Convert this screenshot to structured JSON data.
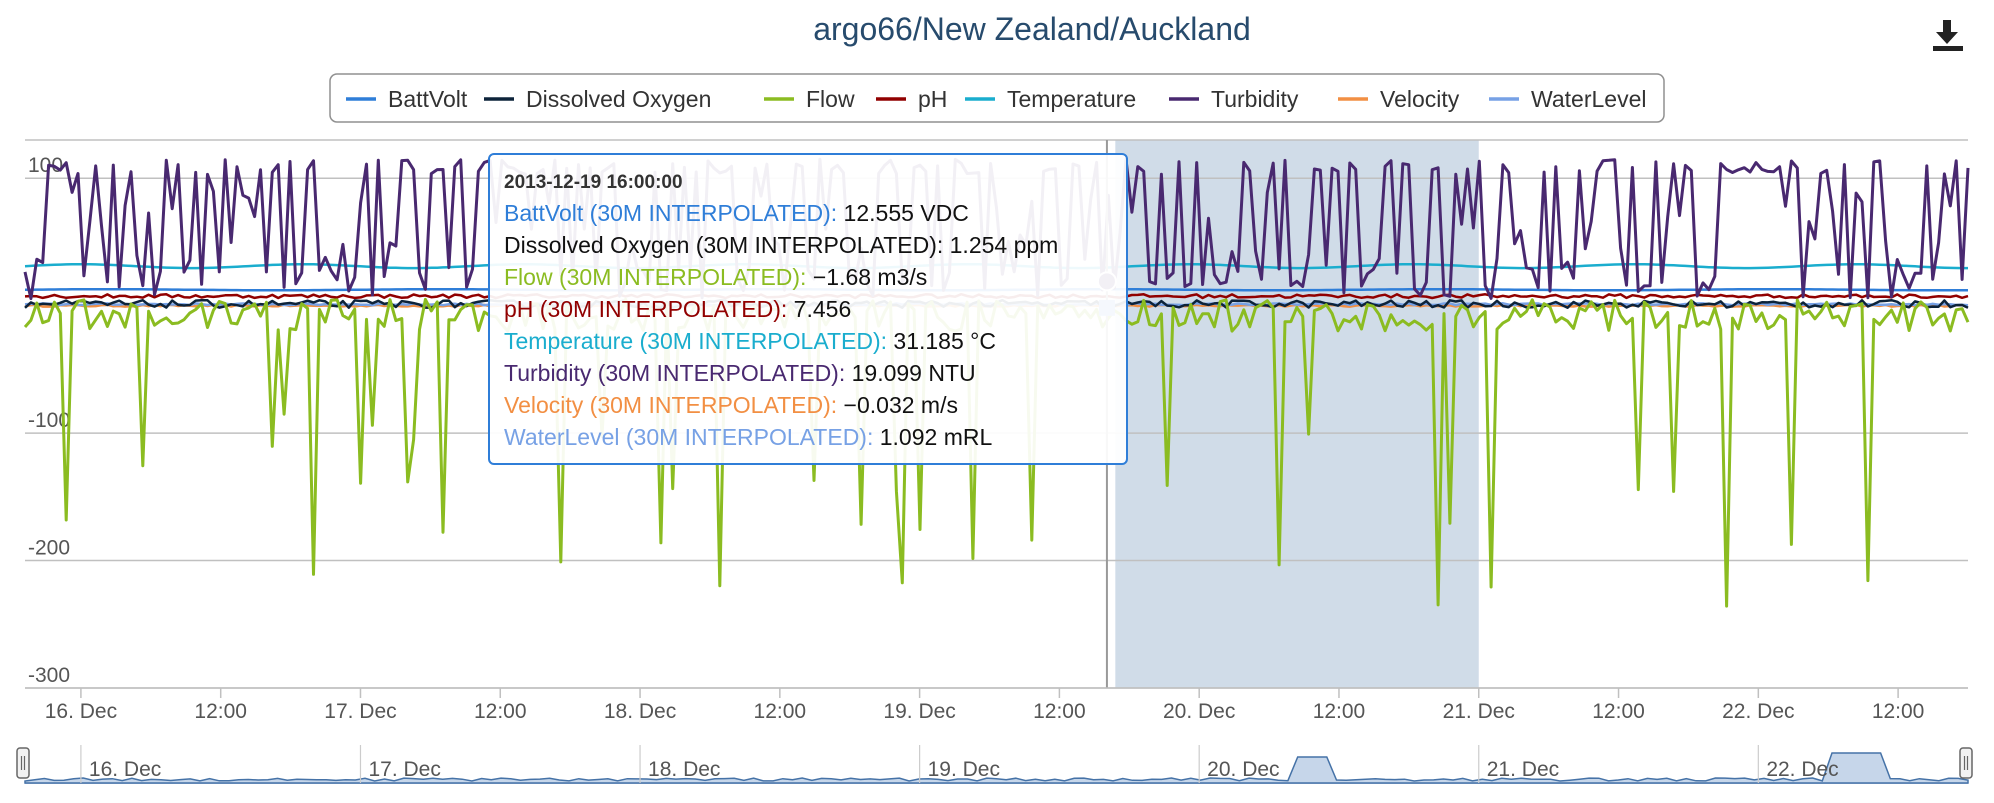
{
  "title": "argo66/New Zealand/Auckland",
  "colors": {
    "BattVolt": "#2f7ed8",
    "Dissolved Oxygen": "#0d233a",
    "Flow": "#8bbc21",
    "pH": "#910000",
    "Temperature": "#1aadce",
    "Turbidity": "#492970",
    "Velocity": "#f28f43",
    "WaterLevel": "#77a1e5",
    "grid": "#c0c0c0",
    "selection_band": "#d0dce8",
    "navigator_fill": "#c6d6ea"
  },
  "export_icon": "download-icon",
  "chart_data": {
    "type": "line",
    "title": "argo66/New Zealand/Auckland",
    "legend_position": "top",
    "y_ticks": [
      "100",
      "-100",
      "-200",
      "-300"
    ],
    "ylim": [
      -300,
      130
    ],
    "x_ticks": [
      "16. Dec",
      "12:00",
      "17. Dec",
      "12:00",
      "18. Dec",
      "12:00",
      "19. Dec",
      "12:00",
      "20. Dec",
      "12:00",
      "21. Dec",
      "12:00",
      "22. Dec",
      "12:00"
    ],
    "navigator_ticks": [
      "16. Dec",
      "17. Dec",
      "18. Dec",
      "19. Dec",
      "20. Dec",
      "21. Dec",
      "22. Dec"
    ],
    "x_start_day": 15.8,
    "x_end_day": 22.75,
    "highlight_band_days": [
      19.7,
      21.0
    ],
    "crosshair_day": 19.67,
    "series": [
      {
        "name": "BattVolt",
        "level": 12.5
      },
      {
        "name": "Dissolved Oxygen",
        "level": 1.3
      },
      {
        "name": "Flow",
        "level": -5
      },
      {
        "name": "pH",
        "level": 7.5
      },
      {
        "name": "Temperature",
        "level": 31
      },
      {
        "name": "Turbidity",
        "level": 20
      },
      {
        "name": "Velocity",
        "level": 0
      },
      {
        "name": "WaterLevel",
        "level": 1.1
      }
    ],
    "tooltip": {
      "date": "2013-12-19 16:00:00",
      "rows": [
        {
          "label": "BattVolt (30M INTERPOLATED):",
          "value": "12.555 VDC",
          "series": "BattVolt"
        },
        {
          "label": "Dissolved Oxygen (30M INTERPOLATED):",
          "value": "1.254 ppm",
          "series": "Dissolved Oxygen"
        },
        {
          "label": "Flow (30M INTERPOLATED):",
          "value": "−1.68 m3/s",
          "series": "Flow"
        },
        {
          "label": "pH (30M INTERPOLATED):",
          "value": "7.456",
          "series": "pH"
        },
        {
          "label": "Temperature (30M INTERPOLATED):",
          "value": "31.185 °C",
          "series": "Temperature"
        },
        {
          "label": "Turbidity (30M INTERPOLATED):",
          "value": "19.099 NTU",
          "series": "Turbidity"
        },
        {
          "label": "Velocity (30M INTERPOLATED):",
          "value": "−0.032 m/s",
          "series": "Velocity"
        },
        {
          "label": "WaterLevel (30M INTERPOLATED):",
          "value": "1.092 mRL",
          "series": "WaterLevel"
        }
      ]
    }
  }
}
